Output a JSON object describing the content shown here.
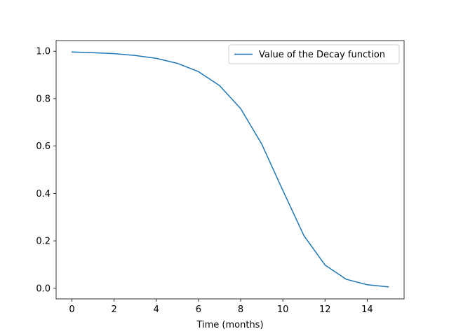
{
  "chart_data": {
    "type": "line",
    "title": "",
    "xlabel": "Time (months)",
    "ylabel": "",
    "xlim": [
      -0.75,
      15.75
    ],
    "ylim": [
      -0.0449,
      1.0449
    ],
    "xticks": [
      0,
      2,
      4,
      6,
      8,
      10,
      12,
      14
    ],
    "xtick_labels": [
      "0",
      "2",
      "4",
      "6",
      "8",
      "10",
      "12",
      "14"
    ],
    "yticks": [
      0.0,
      0.2,
      0.4,
      0.6,
      0.8,
      1.0
    ],
    "ytick_labels": [
      "0.0",
      "0.2",
      "0.4",
      "0.6",
      "0.8",
      "1.0"
    ],
    "grid": false,
    "legend_position": "top-right",
    "series": [
      {
        "name": "Value of the Decay function",
        "color": "#1f77b4",
        "x": [
          0,
          1,
          2,
          3,
          4,
          5,
          6,
          7,
          8,
          9,
          10,
          11,
          12,
          13,
          14,
          15
        ],
        "y": [
          0.997,
          0.994,
          0.99,
          0.982,
          0.97,
          0.949,
          0.914,
          0.855,
          0.758,
          0.608,
          0.413,
          0.222,
          0.098,
          0.038,
          0.015,
          0.006
        ]
      }
    ]
  }
}
